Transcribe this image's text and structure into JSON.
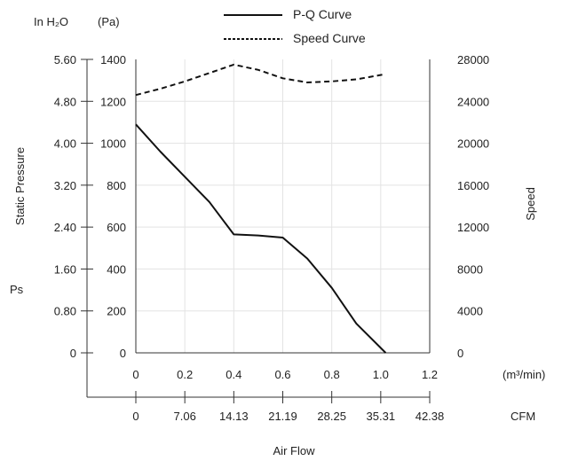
{
  "chart_data": {
    "type": "line",
    "legend_position": "top-center",
    "grid": true,
    "title": "",
    "x_axis": {
      "label": "Air Flow",
      "primary_unit": "(m³/min)",
      "primary_range": [
        0,
        1.2
      ],
      "primary_ticks": [
        "0",
        "0.2",
        "0.4",
        "0.6",
        "0.8",
        "1.0",
        "1.2"
      ],
      "secondary_unit": "CFM",
      "secondary_ticks": [
        "0",
        "7.06",
        "14.13",
        "21.19",
        "28.25",
        "35.31",
        "42.38"
      ]
    },
    "y_axis_left": {
      "label": "Static Pressure",
      "extra_label": "Ps",
      "unit_inner": "In H₂O",
      "unit_outer": "(Pa)",
      "range": [
        0,
        1400
      ],
      "pa_ticks": [
        "0",
        "200",
        "400",
        "600",
        "800",
        "1000",
        "1200",
        "1400"
      ],
      "inh2o_ticks": [
        "0",
        "0.80",
        "1.60",
        "2.40",
        "3.20",
        "4.00",
        "4.80",
        "5.60"
      ]
    },
    "y_axis_right": {
      "label": "Speed",
      "range": [
        0,
        28000
      ],
      "ticks": [
        "0",
        "4000",
        "8000",
        "12000",
        "16000",
        "20000",
        "24000",
        "28000"
      ]
    },
    "series": [
      {
        "name": "P-Q Curve",
        "axis": "left",
        "style": "solid",
        "x": [
          0,
          0.1,
          0.2,
          0.3,
          0.4,
          0.5,
          0.6,
          0.7,
          0.8,
          0.9,
          1.02
        ],
        "y": [
          1090,
          960,
          840,
          720,
          565,
          560,
          550,
          450,
          310,
          140,
          0
        ]
      },
      {
        "name": "Speed Curve",
        "axis": "right",
        "style": "dashed",
        "x": [
          0,
          0.1,
          0.2,
          0.3,
          0.4,
          0.5,
          0.6,
          0.7,
          0.8,
          0.9,
          1.02
        ],
        "y": [
          24600,
          25200,
          25900,
          26700,
          27500,
          27000,
          26200,
          25800,
          25900,
          26100,
          26600
        ]
      }
    ]
  }
}
